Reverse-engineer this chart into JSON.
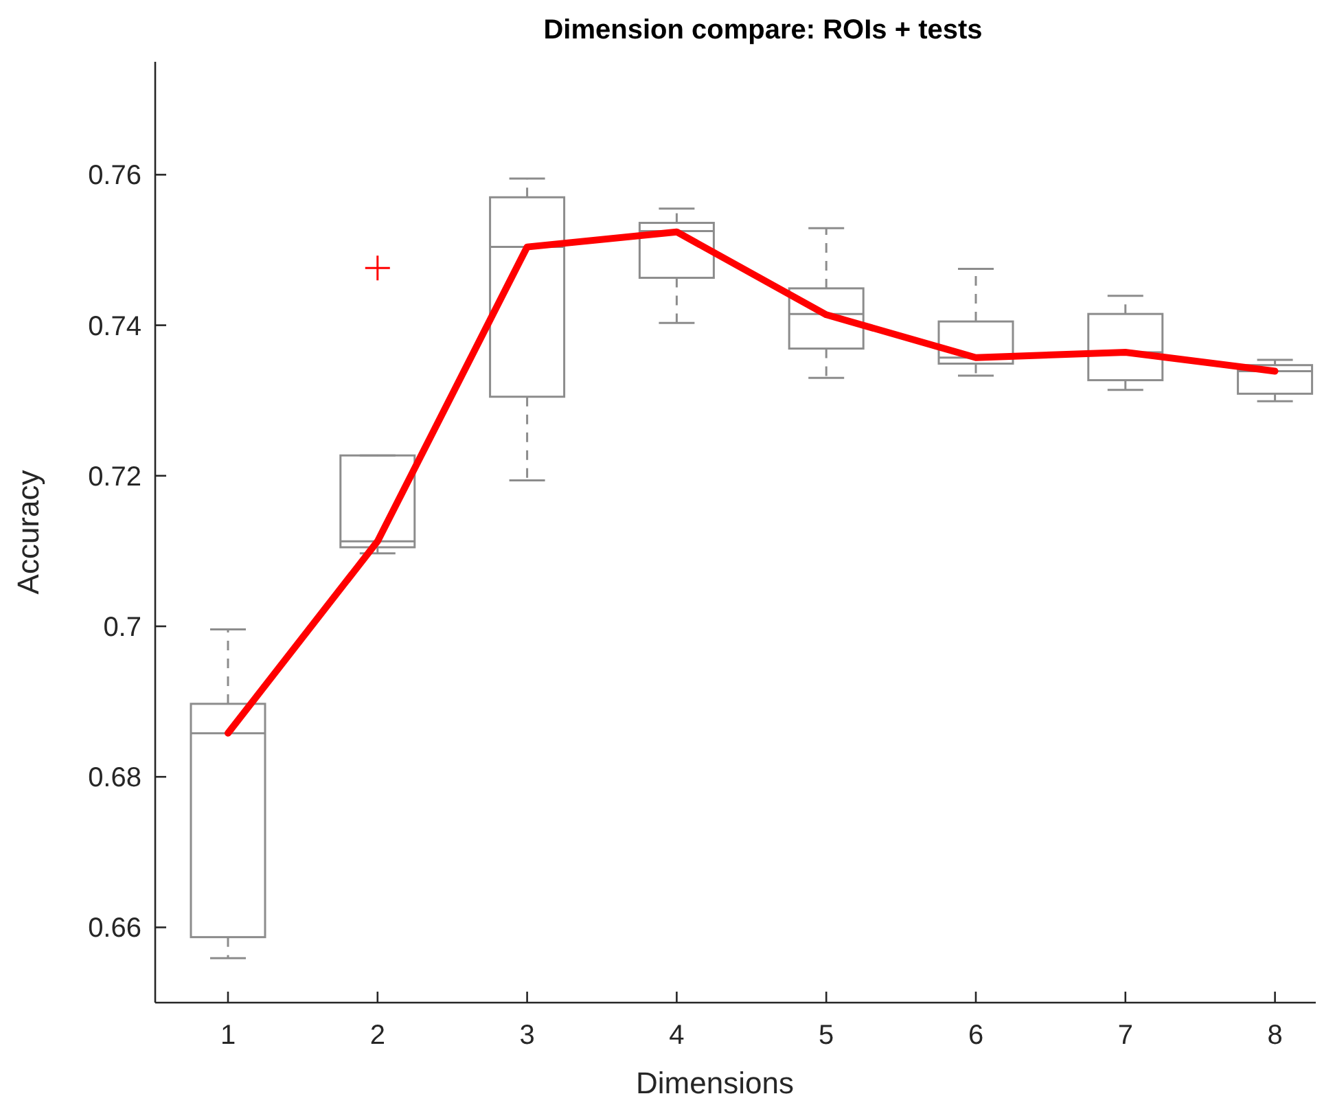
{
  "chart_data": {
    "type": "box",
    "title": "Dimension compare: ROIs + tests",
    "xlabel": "Dimensions",
    "ylabel": "Accuracy",
    "categories": [
      "1",
      "2",
      "3",
      "4",
      "5",
      "6",
      "7",
      "8"
    ],
    "ylim": [
      0.65,
      0.775
    ],
    "yticks": [
      0.66,
      0.68,
      0.7,
      0.72,
      0.74,
      0.76
    ],
    "grid": false,
    "series": [
      {
        "color": "#8c8c8c",
        "boxes": [
          {
            "low": 0.6559,
            "q1": 0.6587,
            "median": 0.6858,
            "q3": 0.6897,
            "high": 0.6996
          },
          {
            "low": 0.7097,
            "q1": 0.7105,
            "median": 0.7113,
            "q3": 0.7227,
            "high": 0.7227
          },
          {
            "low": 0.7194,
            "q1": 0.7305,
            "median": 0.7504,
            "q3": 0.757,
            "high": 0.7595
          },
          {
            "low": 0.7403,
            "q1": 0.7463,
            "median": 0.7525,
            "q3": 0.7536,
            "high": 0.7555
          },
          {
            "low": 0.733,
            "q1": 0.7369,
            "median": 0.7415,
            "q3": 0.7449,
            "high": 0.7529
          },
          {
            "low": 0.7333,
            "q1": 0.7349,
            "median": 0.7357,
            "q3": 0.7405,
            "high": 0.7475
          },
          {
            "low": 0.7314,
            "q1": 0.7327,
            "median": 0.7364,
            "q3": 0.7415,
            "high": 0.7439
          },
          {
            "low": 0.7299,
            "q1": 0.7309,
            "median": 0.7339,
            "q3": 0.7347,
            "high": 0.7354
          }
        ]
      },
      {
        "type": "scatter",
        "color": "#ff0000",
        "marker": "cross",
        "x": [
          "2"
        ],
        "values": [
          0.7476
        ]
      },
      {
        "type": "line",
        "color": "#ff0000",
        "marker": "none",
        "line_style": "solid",
        "values": [
          0.6858,
          0.7113,
          0.7504,
          0.7524,
          0.7414,
          0.7357,
          0.7364,
          0.7339
        ]
      }
    ]
  }
}
